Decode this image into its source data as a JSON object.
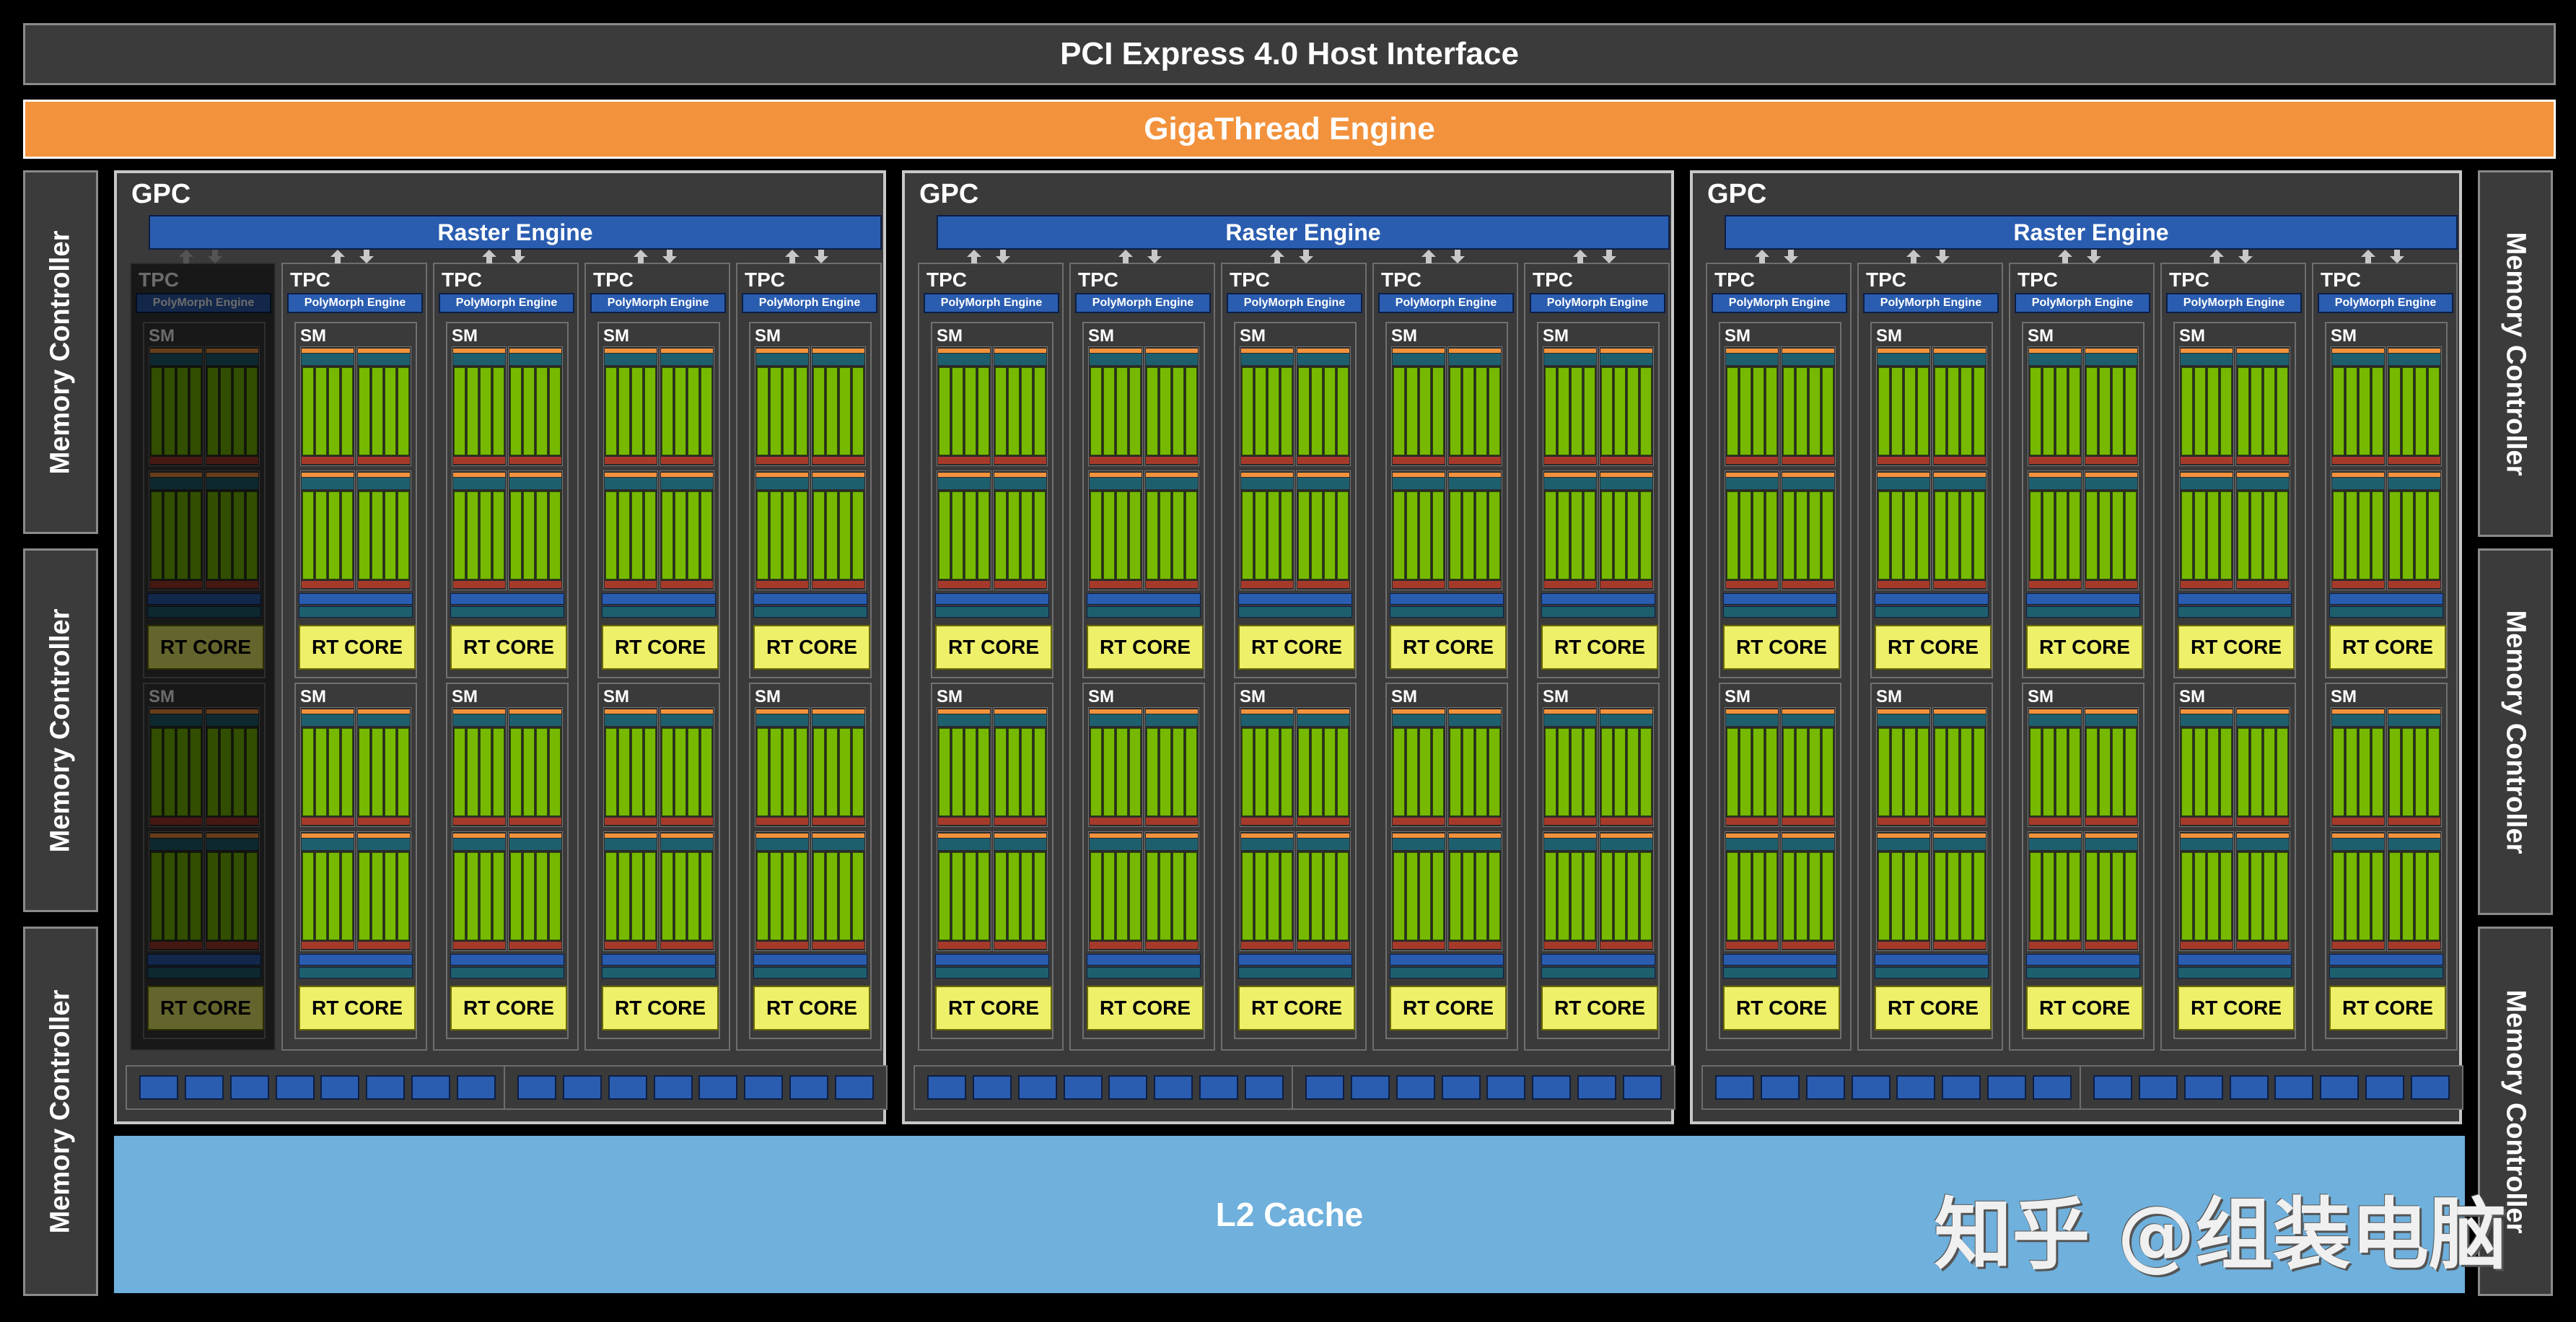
{
  "pci": {
    "label": "PCI Express 4.0 Host Interface"
  },
  "gigathread": {
    "label": "GigaThread Engine"
  },
  "memory_controller": {
    "label": "Memory Controller",
    "count_left": 3,
    "count_right": 3
  },
  "l2": {
    "label": "L2 Cache"
  },
  "watermark": {
    "text": "知乎 @组装电脑"
  },
  "gpcs": [
    {
      "title": "GPC",
      "raster": "Raster Engine",
      "disabled_tpcs": [
        0
      ]
    },
    {
      "title": "GPC",
      "raster": "Raster Engine",
      "disabled_tpcs": []
    },
    {
      "title": "GPC",
      "raster": "Raster Engine",
      "disabled_tpcs": []
    }
  ],
  "tpc": {
    "title": "TPC",
    "polymorph": "PolyMorph Engine",
    "per_gpc": 5
  },
  "sm": {
    "title": "SM",
    "per_tpc": 2,
    "rt_core": "RT CORE"
  },
  "rop_units_per_partition": 8,
  "colors": {
    "background": "#000000",
    "host_interface": "#3b3b3b",
    "gigathread": "#f2923d",
    "raster": "#2a5db0",
    "cuda_core": "#76b900",
    "rt_core": "#eef06a",
    "l2_cache": "#6fb0dc"
  }
}
